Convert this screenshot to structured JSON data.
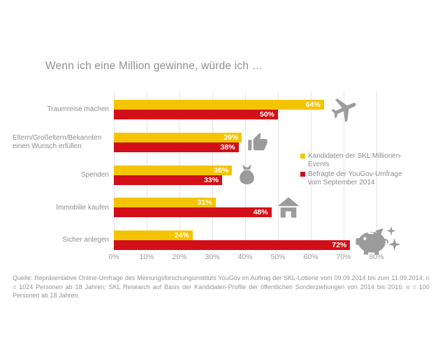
{
  "title": "Wenn ich eine Million gewinne, würde ich …",
  "chart_data": {
    "type": "bar",
    "orientation": "horizontal",
    "title": "Wenn ich eine Million gewinne, würde ich …",
    "categories": [
      "Traumreise machen",
      "Eltern/Großeltern/Bekannten einen Wunsch erfüllen",
      "Spenden",
      "Immobilie kaufen",
      "Sicher anlegen"
    ],
    "series": [
      {
        "name": "Kandidaten der SKL Millionen-Events",
        "color": "#f5c400",
        "values": [
          64,
          39,
          36,
          31,
          24
        ]
      },
      {
        "name": "Befragte der YouGov-Umfrage vom September 2014",
        "color": "#d20f18",
        "values": [
          50,
          38,
          33,
          48,
          72
        ]
      }
    ],
    "x_tick_labels": [
      "0%",
      "10%",
      "20%",
      "30%",
      "40%",
      "50%",
      "60%",
      "70%",
      "80%"
    ],
    "xlim": [
      0,
      80
    ],
    "value_suffix": "%",
    "grid": "vertical-only",
    "legend_position": "right",
    "category_icons": [
      "airplane",
      "thumbs-up",
      "money-bag",
      "house",
      "piggy-bank"
    ]
  },
  "legend": {
    "items": [
      {
        "label": "Kandidaten der SKL Millionen-Events",
        "color": "#f5c400"
      },
      {
        "label": "Befragte der YouGov-Umfrage vom September 2014",
        "color": "#d20f18"
      }
    ]
  },
  "source_note": "Quelle: Repräsentative Online-Umfrage des Meinungsforschungsinstituts YouGov im Auftrag der SKL-Lotterie vom 09.09.2014 bis zum 11.09.2014; n = 1024 Personen ab 18 Jahren; SKL Research auf Basis der Kandidaten-Profile der öffentlichen Sonderziehungen von 2014 bis 2016: n = 100 Personen ab 18 Jahren.",
  "colors": {
    "series_yellow": "#f5c400",
    "series_red": "#d20f18",
    "icon_gray": "#9b9b9b",
    "gridline": "#e4e4e4",
    "text_gray": "#8e8e8e"
  }
}
